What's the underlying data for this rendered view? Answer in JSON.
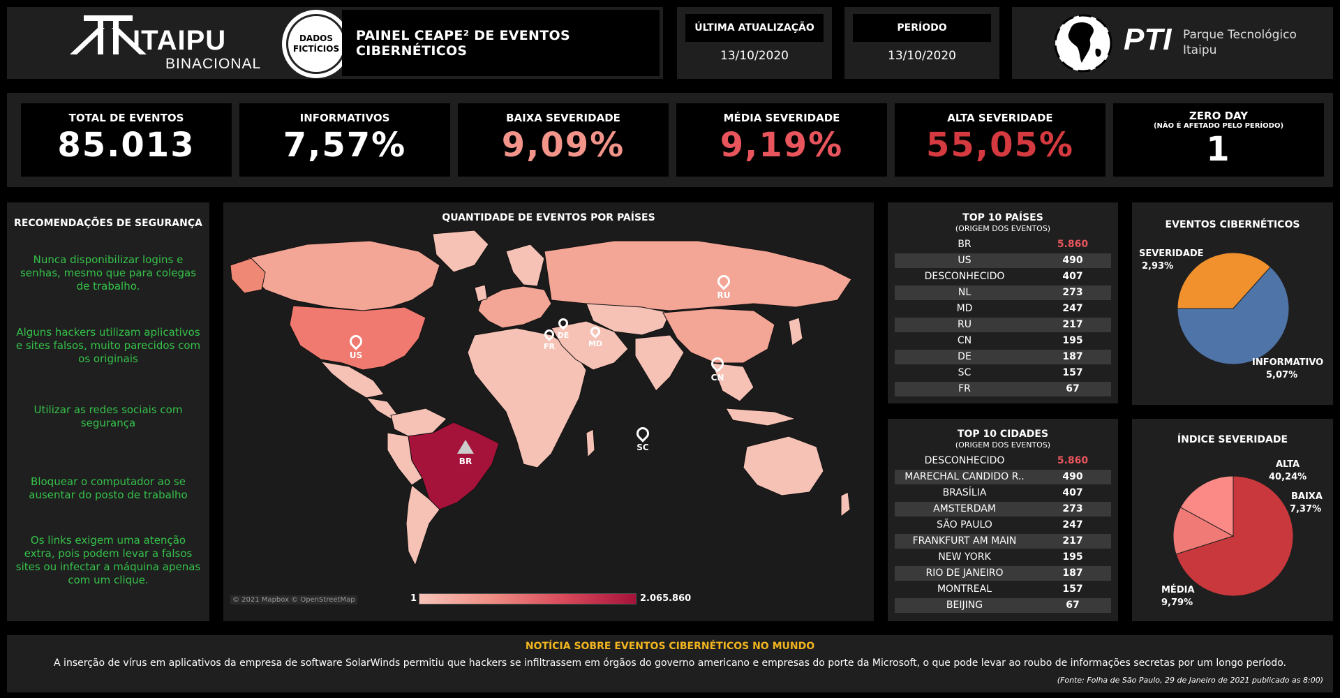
{
  "header": {
    "brand_name": "ITAIPU",
    "brand_sub": "BINACIONAL",
    "badge_line1": "DADOS",
    "badge_line2": "FICTÍCIOS",
    "dashboard_title": "PAINEL CEAPE² DE EVENTOS CIBERNÉTICOS",
    "last_update_label": "ÚLTIMA ATUALIZAÇÃO",
    "last_update_value": "13/10/2020",
    "period_label": "PERÍODO",
    "period_value": "13/10/2020",
    "pti_mark": "PTI",
    "pti_line1": "Parque Tecnológico",
    "pti_line2": "Itaipu"
  },
  "kpis": [
    {
      "label": "TOTAL DE EVENTOS",
      "value": "85.013",
      "color": "#ffffff"
    },
    {
      "label": "INFORMATIVOS",
      "value": "7,57%",
      "color": "#ffffff"
    },
    {
      "label": "BAIXA SEVERIDADE",
      "value": "9,09%",
      "color": "#f2948a"
    },
    {
      "label": "MÉDIA SEVERIDADE",
      "value": "9,19%",
      "color": "#e8555c"
    },
    {
      "label": "ALTA SEVERIDADE",
      "value": "55,05%",
      "color": "#d43a3f"
    },
    {
      "label": "ZERO DAY",
      "sublabel": "(NÃO É AFETADO PELO PERÍODO)",
      "value": "1",
      "color": "#ffffff"
    }
  ],
  "recommendations": {
    "title": "RECOMENDAÇÕES DE SEGURANÇA",
    "items": [
      "Nunca disponibilizar logins e senhas, mesmo que para colegas de trabalho.",
      "Alguns hackers utilizam aplicativos e sites falsos, muito parecidos com os originais",
      "Utilizar as redes sociais com segurança",
      "Bloquear o computador ao se ausentar do posto de trabalho",
      "Os links exigem uma atenção extra, pois podem levar a falsos sites ou infectar a máquina apenas com um clique."
    ]
  },
  "map": {
    "title": "QUANTIDADE DE EVENTOS POR PAÍSES",
    "attribution": "© 2021 Mapbox © OpenStreetMap",
    "legend_min": "1",
    "legend_max": "2.065.860",
    "markers": [
      "US",
      "RU",
      "CN",
      "BR",
      "SC",
      "FR",
      "MD",
      "DE"
    ]
  },
  "top_countries": {
    "title": "TOP 10 PAÍSES",
    "subtitle": "(ORIGEM DOS EVENTOS)",
    "rows": [
      {
        "label": "BR",
        "value": "5.860"
      },
      {
        "label": "US",
        "value": "490"
      },
      {
        "label": "DESCONHECIDO",
        "value": "407"
      },
      {
        "label": "NL",
        "value": "273"
      },
      {
        "label": "MD",
        "value": "247"
      },
      {
        "label": "RU",
        "value": "217"
      },
      {
        "label": "CN",
        "value": "195"
      },
      {
        "label": "DE",
        "value": "187"
      },
      {
        "label": "SC",
        "value": "157"
      },
      {
        "label": "FR",
        "value": "67"
      }
    ]
  },
  "top_cities": {
    "title": "TOP 10 CIDADES",
    "subtitle": "(ORIGEM DOS EVENTOS)",
    "rows": [
      {
        "label": "DESCONHECIDO",
        "value": "5.860"
      },
      {
        "label": "MARECHAL CANDIDO R..",
        "value": "490"
      },
      {
        "label": "BRASÍLIA",
        "value": "407"
      },
      {
        "label": "AMSTERDAM",
        "value": "273"
      },
      {
        "label": "SÃO PAULO",
        "value": "247"
      },
      {
        "label": "FRANKFURT AM MAIN",
        "value": "217"
      },
      {
        "label": "NEW YORK",
        "value": "195"
      },
      {
        "label": "RIO DE JANEIRO",
        "value": "187"
      },
      {
        "label": "MONTREAL",
        "value": "157"
      },
      {
        "label": "BEIJING",
        "value": "67"
      }
    ]
  },
  "chart_data": [
    {
      "type": "pie",
      "title": "EVENTOS CIBERNÉTICOS",
      "categories": [
        "SEVERIDADE",
        "INFORMATIVO"
      ],
      "labels": [
        "2,93%",
        "5,07%"
      ],
      "values": [
        2.93,
        5.07
      ],
      "colors": [
        "#f0912e",
        "#4f74a8"
      ]
    },
    {
      "type": "pie",
      "title": "ÍNDICE SEVERIDADE",
      "categories": [
        "ALTA",
        "BAIXA",
        "MÉDIA"
      ],
      "labels": [
        "40,24%",
        "7,37%",
        "9,79%"
      ],
      "values": [
        40.24,
        7.37,
        9.79
      ],
      "colors": [
        "#c8383c",
        "#f07a76",
        "#fb8a87"
      ]
    }
  ],
  "news": {
    "title": "NOTÍCIA SOBRE EVENTOS CIBERNÉTICOS NO MUNDO",
    "text": "A inserção de vírus em aplicativos da empresa de software SolarWinds permitiu que hackers se infiltrassem em órgãos do governo americano e empresas do porte da Microsoft, o que pode levar ao roubo de informações secretas por um longo período.",
    "source": "(Fonte: Folha de São Paulo, 29 de Janeiro de 2021 publicado as 8:00)"
  }
}
